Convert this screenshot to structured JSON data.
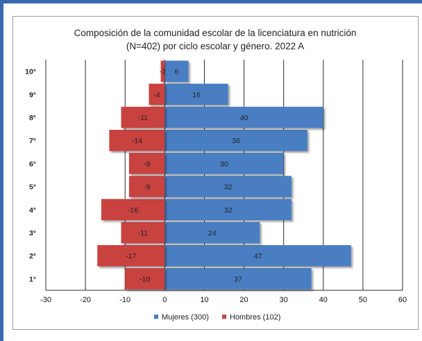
{
  "chart_data": {
    "type": "bar",
    "orientation": "horizontal",
    "stacked": "diverging",
    "title_lines": [
      "Composición de la comunidad escolar de la licenciatura en nutrición",
      "(N=402) por ciclo escolar y  género. 2022 A"
    ],
    "categories": [
      "1°",
      "2°",
      "3°",
      "4°",
      "5°",
      "6°",
      "7°",
      "8°",
      "9°",
      "10°"
    ],
    "series": [
      {
        "name": "Mujeres (300)",
        "color": "#4a7ec2",
        "values": [
          37,
          47,
          24,
          32,
          32,
          30,
          36,
          40,
          16,
          6
        ]
      },
      {
        "name": "Hombres (102)",
        "color": "#c8433f",
        "values": [
          -10,
          -17,
          -11,
          -16,
          -9,
          -9,
          -14,
          -11,
          -4,
          -1
        ]
      }
    ],
    "xlim": [
      -30,
      60
    ],
    "xticks": [
      "-30",
      "-20",
      "-10",
      "0",
      "10",
      "20",
      "30",
      "40",
      "50",
      "60"
    ],
    "grid": "vertical",
    "legend_position": "bottom"
  }
}
